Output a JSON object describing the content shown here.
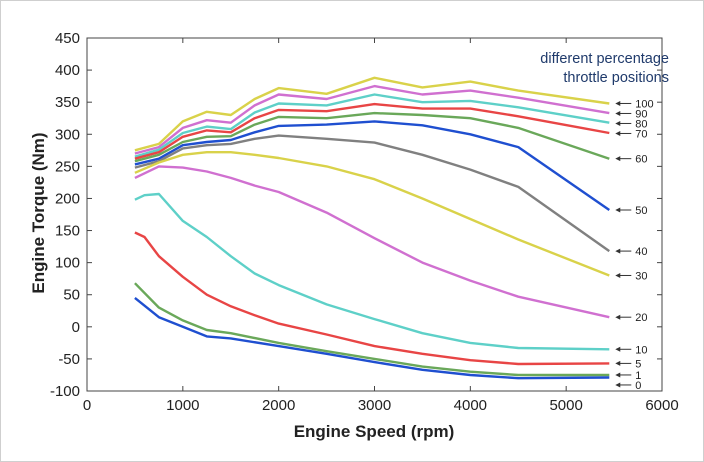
{
  "chart_data": {
    "type": "line",
    "xlabel": "Engine Speed (rpm)",
    "ylabel": "Engine Torque (Nm)",
    "xlim": [
      0,
      6000
    ],
    "ylim": [
      -100,
      450
    ],
    "xticks": [
      0,
      1000,
      2000,
      3000,
      4000,
      5000,
      6000
    ],
    "yticks": [
      -100,
      -50,
      0,
      50,
      100,
      150,
      200,
      250,
      300,
      350,
      400,
      450
    ],
    "grid": false,
    "annotation": [
      "different percentage",
      "throttle positions"
    ],
    "series": [
      {
        "name": "100",
        "color": "#d9d24a",
        "x": [
          500,
          750,
          1000,
          1250,
          1500,
          1750,
          2000,
          2500,
          3000,
          3500,
          4000,
          4500,
          5450
        ],
        "y": [
          275,
          285,
          320,
          335,
          330,
          355,
          372,
          363,
          388,
          373,
          382,
          368,
          348
        ]
      },
      {
        "name": "90",
        "color": "#d070d0",
        "x": [
          500,
          750,
          1000,
          1250,
          1500,
          1750,
          2000,
          2500,
          3000,
          3500,
          4000,
          4500,
          5450
        ],
        "y": [
          270,
          280,
          310,
          322,
          318,
          345,
          362,
          355,
          375,
          362,
          368,
          357,
          333
        ]
      },
      {
        "name": "80",
        "color": "#5ed0c8",
        "x": [
          500,
          750,
          1000,
          1250,
          1500,
          1750,
          2000,
          2500,
          3000,
          3500,
          4000,
          4500,
          5450
        ],
        "y": [
          265,
          276,
          302,
          312,
          308,
          334,
          348,
          345,
          362,
          350,
          352,
          342,
          318
        ]
      },
      {
        "name": "70",
        "color": "#e84545",
        "x": [
          500,
          750,
          1000,
          1250,
          1500,
          1750,
          2000,
          2500,
          3000,
          3500,
          4000,
          4500,
          5450
        ],
        "y": [
          262,
          272,
          296,
          306,
          303,
          325,
          338,
          336,
          347,
          340,
          340,
          328,
          302
        ]
      },
      {
        "name": "60",
        "color": "#6aa85a",
        "x": [
          500,
          750,
          1000,
          1250,
          1500,
          1750,
          2000,
          2500,
          3000,
          3500,
          4000,
          4500,
          5450
        ],
        "y": [
          258,
          268,
          288,
          296,
          297,
          315,
          327,
          325,
          333,
          330,
          325,
          310,
          262
        ]
      },
      {
        "name": "50",
        "color": "#1f4fd0",
        "x": [
          500,
          750,
          1000,
          1250,
          1500,
          1750,
          2000,
          2500,
          3000,
          3500,
          4000,
          4500,
          5450
        ],
        "y": [
          253,
          262,
          283,
          288,
          291,
          303,
          313,
          315,
          320,
          314,
          300,
          280,
          182
        ]
      },
      {
        "name": "40",
        "color": "#808080",
        "x": [
          500,
          750,
          1000,
          1250,
          1500,
          1750,
          2000,
          2500,
          3000,
          3500,
          4000,
          4500,
          5450
        ],
        "y": [
          248,
          258,
          278,
          283,
          285,
          293,
          298,
          293,
          287,
          268,
          245,
          218,
          118
        ]
      },
      {
        "name": "30",
        "color": "#d9d24a",
        "x": [
          500,
          750,
          1000,
          1250,
          1500,
          1750,
          2000,
          2500,
          3000,
          3500,
          4000,
          4500,
          5450
        ],
        "y": [
          240,
          256,
          268,
          272,
          272,
          268,
          263,
          250,
          230,
          200,
          168,
          136,
          80
        ]
      },
      {
        "name": "20",
        "color": "#d070d0",
        "x": [
          500,
          750,
          1000,
          1250,
          1500,
          1750,
          2000,
          2500,
          3000,
          3500,
          4000,
          4500,
          5450
        ],
        "y": [
          232,
          250,
          248,
          242,
          232,
          220,
          210,
          178,
          138,
          100,
          72,
          47,
          15
        ]
      },
      {
        "name": "10",
        "color": "#5ed0c8",
        "x": [
          500,
          600,
          750,
          1000,
          1250,
          1500,
          1750,
          2000,
          2500,
          3000,
          3500,
          4000,
          4500,
          5450
        ],
        "y": [
          198,
          205,
          207,
          165,
          140,
          110,
          83,
          65,
          35,
          12,
          -10,
          -25,
          -33,
          -35
        ]
      },
      {
        "name": "5",
        "color": "#e84545",
        "x": [
          500,
          600,
          750,
          1000,
          1250,
          1500,
          1750,
          2000,
          2500,
          3000,
          3500,
          4000,
          4500,
          5450
        ],
        "y": [
          147,
          140,
          110,
          78,
          50,
          32,
          18,
          5,
          -12,
          -30,
          -42,
          -52,
          -58,
          -57
        ]
      },
      {
        "name": "1",
        "color": "#6aa85a",
        "x": [
          500,
          750,
          1000,
          1250,
          1500,
          2000,
          2500,
          3000,
          3500,
          4000,
          4500,
          5450
        ],
        "y": [
          68,
          30,
          10,
          -5,
          -10,
          -25,
          -38,
          -50,
          -62,
          -70,
          -75,
          -75
        ]
      },
      {
        "name": "0",
        "color": "#1f4fd0",
        "x": [
          500,
          750,
          1000,
          1250,
          1500,
          2000,
          2500,
          3000,
          3500,
          4000,
          4500,
          5450
        ],
        "y": [
          45,
          15,
          0,
          -15,
          -18,
          -30,
          -42,
          -55,
          -67,
          -75,
          -80,
          -79
        ]
      }
    ]
  }
}
